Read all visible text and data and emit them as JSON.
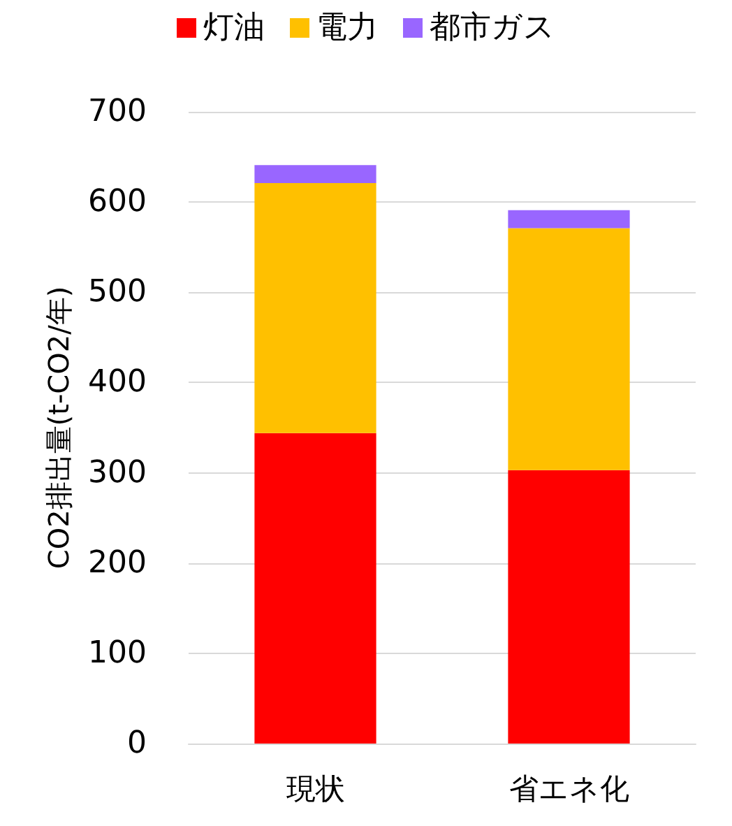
{
  "chart_data": {
    "type": "bar",
    "ylabel": "CO2排出量(t-CO2/年)",
    "categories": [
      "現状",
      "省エネ化"
    ],
    "series": [
      {
        "name": "灯油",
        "color": "#ff0000",
        "values": [
          344,
          303
        ]
      },
      {
        "name": "電力",
        "color": "#ffc000",
        "values": [
          277,
          268
        ]
      },
      {
        "name": "都市ガス",
        "color": "#9966ff",
        "values": [
          20,
          20
        ]
      }
    ],
    "stacked": true,
    "ylim": [
      0,
      700
    ],
    "yticks": [
      0,
      100,
      200,
      300,
      400,
      500,
      600,
      700
    ],
    "grid": "y",
    "legend": "top"
  }
}
